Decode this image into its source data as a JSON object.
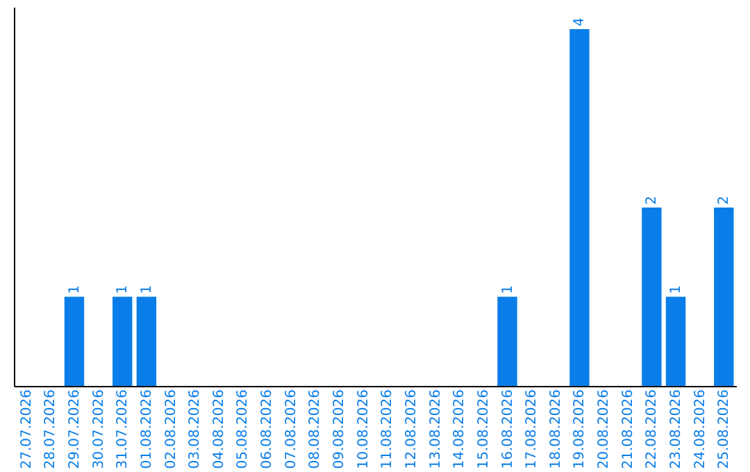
{
  "chart_data": {
    "type": "bar",
    "categories": [
      "27.07.2026",
      "28.07.2026",
      "29.07.2026",
      "30.07.2026",
      "31.07.2026",
      "01.08.2026",
      "02.08.2026",
      "03.08.2026",
      "04.08.2026",
      "05.08.2026",
      "06.08.2026",
      "07.08.2026",
      "08.08.2026",
      "09.08.2026",
      "10.08.2026",
      "11.08.2026",
      "12.08.2026",
      "13.08.2026",
      "14.08.2026",
      "15.08.2026",
      "16.08.2026",
      "17.08.2026",
      "18.08.2026",
      "19.08.2026",
      "20.08.2026",
      "21.08.2026",
      "22.08.2026",
      "23.08.2026",
      "24.08.2026",
      "25.08.2026"
    ],
    "values": [
      0,
      0,
      1,
      0,
      1,
      1,
      0,
      0,
      0,
      0,
      0,
      0,
      0,
      0,
      0,
      0,
      0,
      0,
      0,
      0,
      1,
      0,
      0,
      4,
      0,
      0,
      2,
      1,
      0,
      2
    ],
    "value_labels": [
      null,
      null,
      "1",
      null,
      "1",
      "1",
      null,
      null,
      null,
      null,
      null,
      null,
      null,
      null,
      null,
      null,
      null,
      null,
      null,
      null,
      "1",
      null,
      null,
      "4",
      null,
      null,
      "2",
      "1",
      null,
      "2"
    ],
    "color": "#0a7ee8",
    "ylim": [
      0,
      4.25
    ],
    "tick_labels": "x",
    "grid": false
  }
}
